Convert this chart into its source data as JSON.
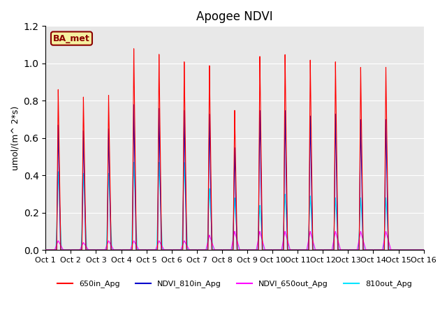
{
  "title": "Apogee NDVI",
  "ylabel": "umol/(m^ 2*s)",
  "xlim": [
    0,
    15
  ],
  "ylim": [
    0,
    1.2
  ],
  "yticks": [
    0.0,
    0.2,
    0.4,
    0.6,
    0.8,
    1.0,
    1.2
  ],
  "xtick_labels": [
    "Oct 1",
    "Oct 2",
    "Oct 3",
    "Oct 4",
    "Oct 5",
    "Oct 6",
    "Oct 7",
    "Oct 8",
    "Oct 9",
    "Oct 10",
    "Oct 11",
    "Oct 12",
    "Oct 13",
    "Oct 14",
    "Oct 15",
    "Oct 16"
  ],
  "background_color": "#e8e8e8",
  "plot_bg_color": "#e8e8e8",
  "legend_label": "BA_met",
  "series": {
    "650in_Apg": {
      "color": "#ff0000",
      "peaks": [
        0.86,
        0.82,
        0.83,
        1.08,
        1.05,
        1.01,
        0.99,
        0.75,
        1.04,
        1.05,
        1.02,
        1.01,
        0.98,
        0.98
      ],
      "rise": 0.06,
      "fall": 0.1
    },
    "NDVI_810in_Apg": {
      "color": "#0000cc",
      "peaks": [
        0.67,
        0.64,
        0.65,
        0.78,
        0.76,
        0.75,
        0.73,
        0.55,
        0.75,
        0.75,
        0.72,
        0.73,
        0.7,
        0.7
      ],
      "rise": 0.06,
      "fall": 0.09
    },
    "NDVI_650out_Apg": {
      "color": "#ff00ff",
      "peaks": [
        0.05,
        0.04,
        0.05,
        0.05,
        0.05,
        0.05,
        0.08,
        0.1,
        0.1,
        0.1,
        0.1,
        0.1,
        0.1,
        0.1
      ],
      "rise": 0.14,
      "fall": 0.2
    },
    "810out_Apg": {
      "color": "#00e5ff",
      "peaks": [
        0.42,
        0.41,
        0.41,
        0.47,
        0.47,
        0.47,
        0.33,
        0.28,
        0.24,
        0.3,
        0.29,
        0.28,
        0.28,
        0.28
      ],
      "rise": 0.09,
      "fall": 0.13
    }
  },
  "series_order": [
    "810out_Apg",
    "NDVI_650out_Apg",
    "NDVI_810in_Apg",
    "650in_Apg"
  ]
}
